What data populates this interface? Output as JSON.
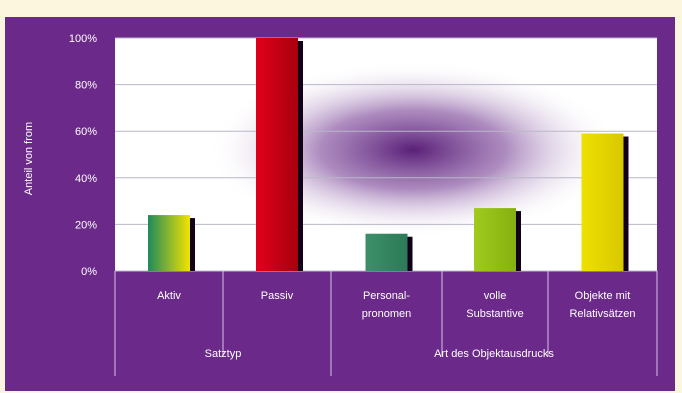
{
  "colors": {
    "background": "#6b2a8a",
    "plot_area": "#ffffff",
    "gridline": "#b8b8c8",
    "separator": "#d6c3e3",
    "text": "#ffffff",
    "shadow": "#120018",
    "gradient_center": "#5a1f78"
  },
  "chart_data": {
    "type": "bar",
    "title": "",
    "ylabel": "Anteil von from",
    "ylim": [
      0,
      100
    ],
    "yticks": [
      "0%",
      "20%",
      "40%",
      "60%",
      "80%",
      "100%"
    ],
    "grid": true,
    "legend": "none",
    "categories": [
      [
        "Aktiv"
      ],
      [
        "Passiv"
      ],
      [
        "Personal-",
        "pronomen"
      ],
      [
        "volle",
        "Substantive"
      ],
      [
        "Objekte mit",
        "Relativsätzen"
      ]
    ],
    "values": [
      24,
      100,
      16,
      27,
      59
    ],
    "bar_colors": [
      [
        "#1f8a5b",
        "#f3e300"
      ],
      [
        "#e0001a",
        "#a8000f"
      ],
      [
        "#3d8f6a",
        "#2c7a57"
      ],
      [
        "#9fcb1e",
        "#85b010"
      ],
      [
        "#eee000",
        "#d8c800"
      ]
    ],
    "groups": [
      {
        "label": "Satztyp",
        "span": 2
      },
      {
        "label": "Art des Objektausdrucks",
        "span": 3
      }
    ]
  }
}
